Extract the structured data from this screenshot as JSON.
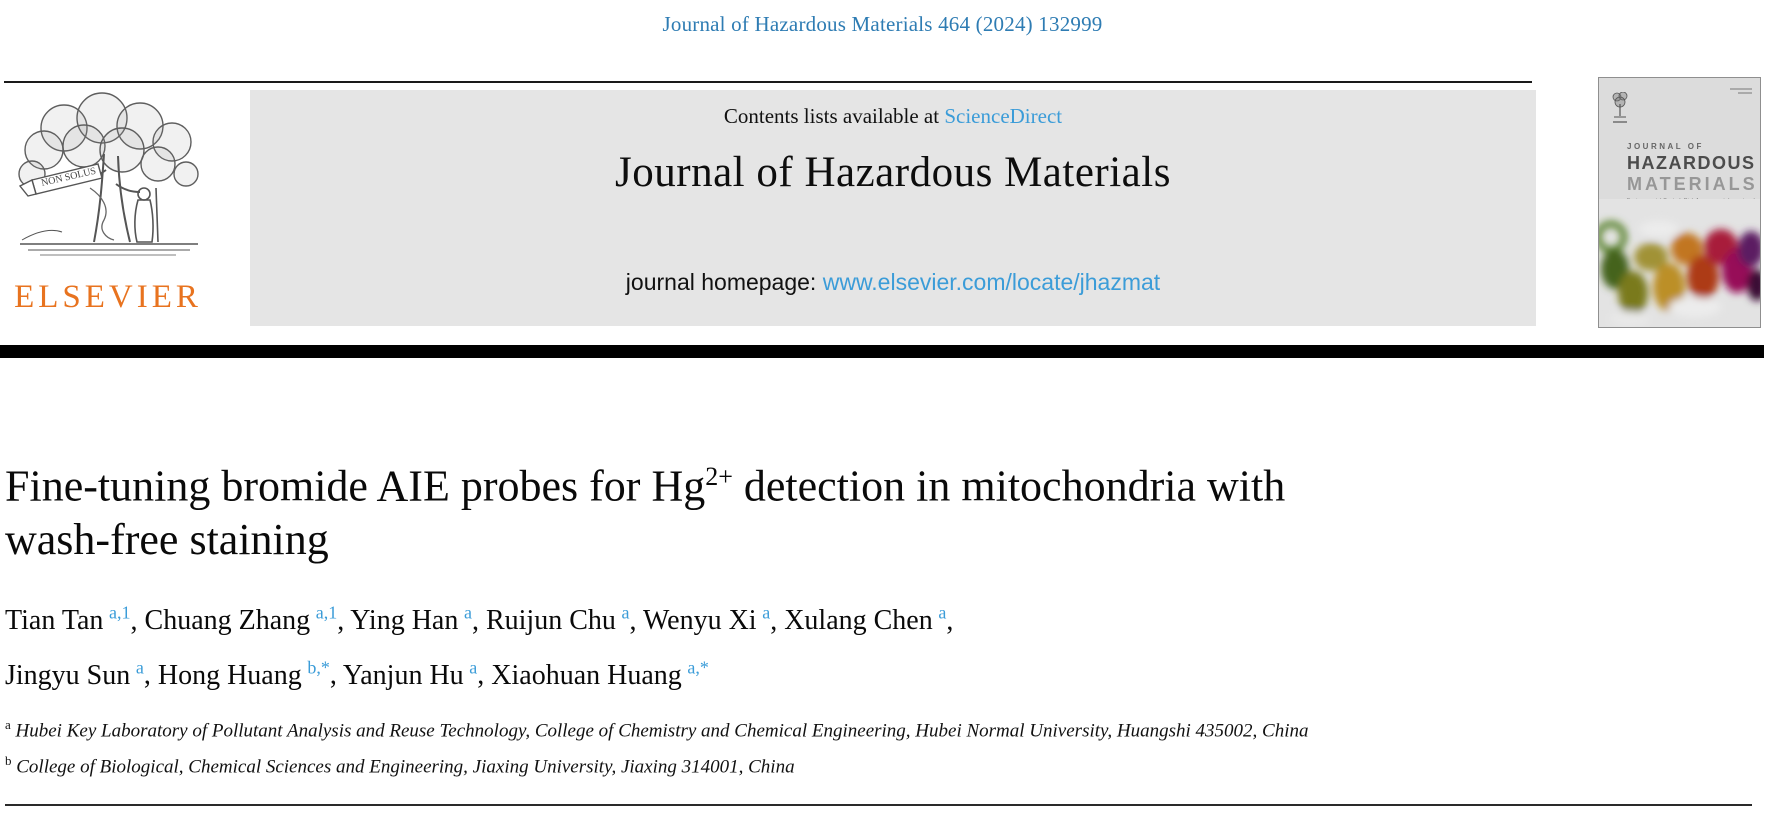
{
  "page": {
    "citation": "Journal of Hazardous Materials 464 (2024) 132999"
  },
  "banner": {
    "contents_prefix": "Contents lists available at ",
    "sciencedirect_label": "ScienceDirect",
    "journal_title": "Journal of Hazardous Materials",
    "homepage_prefix": "journal homepage: ",
    "homepage_url": "www.elsevier.com/locate/jhazmat"
  },
  "publisher": {
    "wordmark": "ELSEVIER",
    "motto": "NON SOLUS"
  },
  "cover": {
    "line1": "JOURNAL OF",
    "line2": "HAZARDOUS",
    "line3": "MATERIALS",
    "subtitle": "Environmental Control, Risk Assessment, Impact and Management"
  },
  "article": {
    "title_pre": "Fine-tuning bromide AIE probes for Hg",
    "title_sup": "2+",
    "title_post": " detection in mitochondria with",
    "title_line2": "wash-free staining",
    "authors_per_line": 6,
    "authors": [
      {
        "name": "Tian Tan",
        "sup": "a,1"
      },
      {
        "name": "Chuang Zhang",
        "sup": "a,1"
      },
      {
        "name": "Ying Han",
        "sup": "a"
      },
      {
        "name": "Ruijun Chu",
        "sup": "a"
      },
      {
        "name": "Wenyu Xi",
        "sup": "a"
      },
      {
        "name": "Xulang Chen",
        "sup": "a"
      },
      {
        "name": "Jingyu Sun",
        "sup": "a"
      },
      {
        "name": "Hong Huang",
        "sup": "b,*"
      },
      {
        "name": "Yanjun Hu",
        "sup": "a"
      },
      {
        "name": "Xiaohuan Huang",
        "sup": "a,*"
      }
    ],
    "affiliations": [
      {
        "sup": "a",
        "text": "Hubei Key Laboratory of Pollutant Analysis and Reuse Technology, College of Chemistry and Chemical Engineering, Hubei Normal University, Huangshi 435002, China"
      },
      {
        "sup": "b",
        "text": "College of Biological, Chemical Sciences and Engineering, Jiaxing University, Jiaxing 314001, China"
      }
    ]
  },
  "colors": {
    "citation_blue": "#2e7cb3",
    "link_blue": "#3b9cd8",
    "elsevier_orange": "#e8731f",
    "banner_gray": "#e5e5e5"
  }
}
